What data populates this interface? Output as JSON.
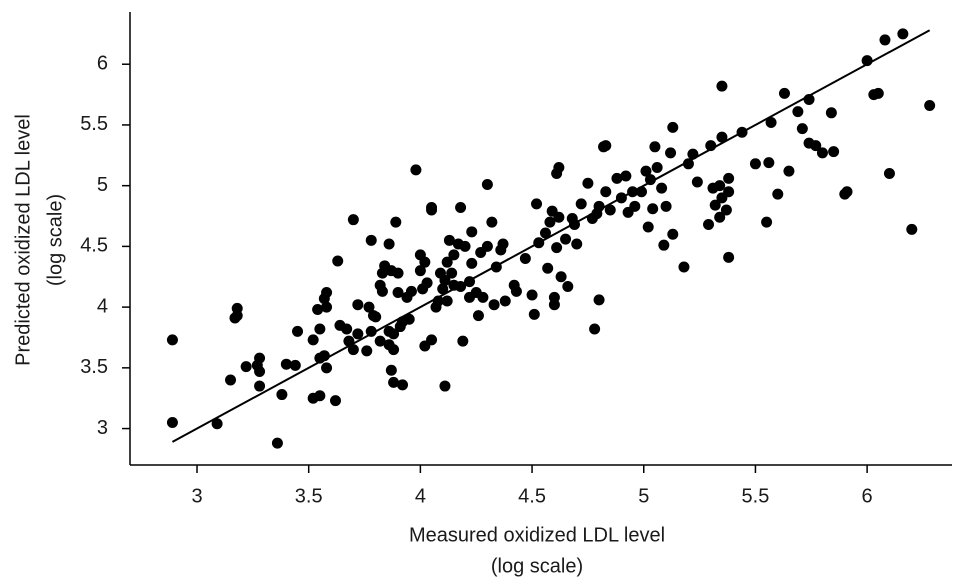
{
  "chart_data": {
    "type": "scatter",
    "color": "#000000",
    "xlabel": [
      "Measured oxidized LDL level",
      "(log scale)"
    ],
    "ylabel": [
      "Predicted oxidized LDL level",
      "(log scale)"
    ],
    "xlim": [
      2.7,
      6.38
    ],
    "ylim": [
      2.7,
      6.43
    ],
    "xticks": [
      3,
      3.5,
      4,
      4.5,
      5,
      5.5,
      6
    ],
    "yticks": [
      3,
      3.5,
      4,
      4.5,
      5,
      5.5,
      6
    ],
    "x": [
      2.89,
      2.89,
      3.09,
      3.17,
      3.18,
      3.18,
      3.15,
      3.22,
      3.28,
      3.27,
      3.28,
      3.28,
      3.36,
      3.38,
      3.4,
      3.44,
      3.45,
      3.52,
      3.55,
      3.52,
      3.55,
      3.57,
      3.55,
      3.54,
      3.58,
      3.57,
      3.58,
      3.58,
      3.62,
      3.63,
      3.64,
      3.67,
      3.68,
      3.7,
      3.7,
      3.72,
      3.72,
      3.76,
      3.77,
      3.78,
      3.79,
      3.78,
      3.8,
      3.82,
      3.82,
      3.83,
      3.83,
      3.84,
      3.86,
      3.86,
      3.86,
      3.87,
      3.87,
      3.88,
      3.88,
      3.88,
      3.89,
      3.9,
      3.9,
      3.91,
      3.92,
      3.92,
      3.94,
      3.95,
      3.96,
      3.98,
      4.0,
      4.0,
      4.01,
      4.02,
      4.02,
      4.03,
      4.05,
      4.05,
      4.05,
      4.07,
      4.08,
      4.09,
      4.1,
      4.11,
      4.11,
      4.12,
      4.12,
      4.13,
      4.14,
      4.15,
      4.15,
      4.17,
      4.18,
      4.18,
      4.19,
      4.2,
      4.22,
      4.22,
      4.23,
      4.23,
      4.25,
      4.26,
      4.27,
      4.28,
      4.3,
      4.3,
      4.32,
      4.33,
      4.34,
      4.36,
      4.37,
      4.38,
      4.42,
      4.43,
      4.47,
      4.5,
      4.51,
      4.52,
      4.53,
      4.56,
      4.57,
      4.58,
      4.59,
      4.6,
      4.6,
      4.61,
      4.61,
      4.62,
      4.62,
      4.63,
      4.65,
      4.66,
      4.68,
      4.69,
      4.7,
      4.72,
      4.75,
      4.77,
      4.78,
      4.79,
      4.8,
      4.8,
      4.82,
      4.83,
      4.83,
      4.85,
      4.88,
      4.9,
      4.92,
      4.93,
      4.95,
      4.96,
      4.99,
      5.01,
      5.02,
      5.03,
      5.04,
      5.05,
      5.06,
      5.08,
      5.09,
      5.1,
      5.12,
      5.13,
      5.13,
      5.18,
      5.2,
      5.22,
      5.24,
      5.29,
      5.3,
      5.31,
      5.32,
      5.34,
      5.34,
      5.35,
      5.35,
      5.35,
      5.37,
      5.38,
      5.38,
      5.38,
      5.44,
      5.5,
      5.56,
      5.55,
      5.57,
      5.6,
      5.63,
      5.65,
      5.69,
      5.71,
      5.74,
      5.74,
      5.77,
      5.8,
      5.84,
      5.85,
      5.9,
      5.91,
      6.0,
      6.03,
      6.05,
      6.08,
      6.1,
      6.16,
      6.2,
      6.28
    ],
    "values": [
      3.73,
      3.05,
      3.04,
      3.91,
      3.99,
      3.93,
      3.4,
      3.51,
      3.58,
      3.52,
      3.47,
      3.35,
      2.88,
      3.28,
      3.53,
      3.52,
      3.8,
      3.25,
      3.27,
      3.73,
      3.58,
      3.6,
      3.82,
      3.98,
      4.0,
      4.07,
      4.12,
      3.5,
      3.23,
      4.38,
      3.85,
      3.82,
      3.72,
      4.72,
      3.65,
      3.78,
      4.02,
      3.64,
      4.0,
      4.55,
      3.93,
      3.8,
      3.92,
      4.18,
      3.72,
      4.28,
      4.13,
      4.34,
      3.69,
      3.8,
      4.52,
      4.3,
      3.48,
      3.38,
      3.65,
      3.78,
      4.7,
      4.12,
      4.28,
      3.84,
      3.88,
      3.36,
      4.08,
      3.9,
      4.13,
      5.13,
      4.43,
      4.3,
      4.15,
      4.37,
      3.68,
      4.2,
      4.8,
      4.82,
      3.73,
      4.0,
      4.05,
      4.28,
      4.15,
      4.22,
      3.35,
      4.05,
      4.37,
      4.55,
      4.28,
      4.43,
      4.18,
      4.52,
      4.82,
      4.17,
      3.72,
      4.5,
      4.21,
      4.08,
      4.62,
      4.36,
      4.12,
      3.93,
      4.45,
      4.08,
      4.5,
      5.01,
      4.7,
      4.02,
      4.33,
      4.47,
      4.52,
      4.05,
      4.18,
      4.13,
      4.4,
      4.1,
      3.94,
      4.85,
      4.53,
      4.61,
      4.32,
      4.7,
      4.79,
      4.08,
      4.02,
      5.1,
      4.49,
      5.15,
      4.74,
      4.25,
      4.56,
      4.17,
      4.73,
      4.68,
      4.52,
      4.85,
      5.02,
      4.73,
      3.82,
      4.77,
      4.83,
      4.06,
      5.32,
      5.33,
      4.95,
      4.8,
      5.06,
      4.9,
      5.08,
      4.78,
      4.95,
      4.83,
      4.95,
      5.12,
      4.66,
      5.05,
      4.81,
      5.32,
      5.15,
      4.98,
      4.51,
      4.83,
      5.27,
      5.48,
      4.6,
      4.33,
      5.18,
      5.26,
      5.03,
      4.68,
      5.33,
      4.98,
      4.84,
      5.0,
      4.74,
      5.4,
      4.9,
      5.82,
      4.8,
      4.95,
      5.06,
      4.41,
      5.44,
      5.18,
      5.19,
      4.7,
      5.52,
      4.93,
      5.76,
      5.12,
      5.61,
      5.47,
      5.71,
      5.35,
      5.33,
      5.27,
      5.6,
      5.28,
      4.93,
      4.95,
      6.03,
      5.75,
      5.76,
      6.2,
      5.1,
      6.25,
      4.64,
      5.66
    ],
    "fit": {
      "x": [
        2.89,
        6.28
      ],
      "values": [
        2.89,
        6.28
      ]
    }
  }
}
